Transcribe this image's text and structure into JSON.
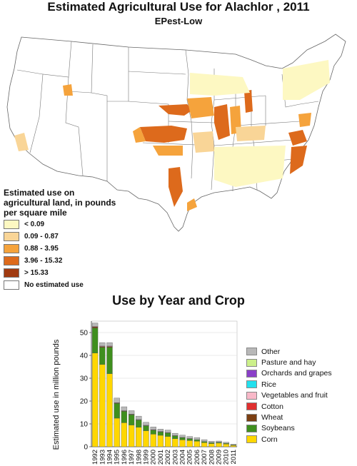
{
  "map": {
    "title": "Estimated Agricultural Use for Alachlor , 2011",
    "subtitle": "EPest-Low"
  },
  "legend": {
    "heading": "Estimated use on agricultural land, in pounds per square mile",
    "items": [
      {
        "label": "< 0.09",
        "color": "#fdf8c2"
      },
      {
        "label": "0.09 - 0.87",
        "color": "#f9d597"
      },
      {
        "label": "0.88 - 3.95",
        "color": "#f5a33c"
      },
      {
        "label": "3.96 - 15.32",
        "color": "#dd6a1c"
      },
      {
        "label": "> 15.33",
        "color": "#a03a10"
      },
      {
        "label": "No estimated use",
        "color": "#ffffff"
      }
    ]
  },
  "chart_data": {
    "type": "bar",
    "title": "Use by Year and Crop",
    "ylabel": "Estimated use in million pounds",
    "xlabel": "",
    "ylim": [
      0,
      55
    ],
    "yticks": [
      0,
      10,
      20,
      30,
      40,
      50
    ],
    "grid": true,
    "legend_position": "right",
    "categories": [
      "1992",
      "1993",
      "1994",
      "1995",
      "1996",
      "1997",
      "1998",
      "1999",
      "2000",
      "2001",
      "2002",
      "2003",
      "2004",
      "2005",
      "2006",
      "2007",
      "2008",
      "2009",
      "2010",
      "2011"
    ],
    "series": [
      {
        "name": "Corn",
        "color": "#ffd700",
        "values": [
          41,
          36,
          32,
          12.5,
          10.5,
          9.5,
          8.5,
          7,
          5.5,
          5,
          4.5,
          3.5,
          3,
          2.7,
          2.4,
          1.8,
          1.4,
          1.6,
          1.2,
          0.6
        ]
      },
      {
        "name": "Soybeans",
        "color": "#3f8f1e",
        "values": [
          11,
          7.5,
          11.5,
          6.5,
          5,
          4.5,
          3.2,
          2.2,
          1.8,
          1.5,
          1.5,
          1.3,
          1.0,
          0.8,
          0.7,
          0.5,
          0.4,
          0.4,
          0.3,
          0.2
        ]
      },
      {
        "name": "Wheat",
        "color": "#7b3f12",
        "values": [
          0.5,
          0.4,
          0.4,
          0.2,
          0.2,
          0.2,
          0.1,
          0.1,
          0.1,
          0.1,
          0.1,
          0.1,
          0.1,
          0.1,
          0,
          0,
          0,
          0,
          0,
          0
        ]
      },
      {
        "name": "Cotton",
        "color": "#e03030",
        "values": [
          0,
          0,
          0,
          0,
          0,
          0,
          0,
          0,
          0,
          0,
          0,
          0,
          0,
          0,
          0,
          0,
          0,
          0,
          0,
          0
        ]
      },
      {
        "name": "Vegetables and fruit",
        "color": "#f8b8c8",
        "values": [
          0.2,
          0.2,
          0.2,
          0.1,
          0.1,
          0.1,
          0.1,
          0.1,
          0.1,
          0.1,
          0.1,
          0,
          0,
          0,
          0,
          0,
          0,
          0,
          0,
          0
        ]
      },
      {
        "name": "Rice",
        "color": "#22e0ee",
        "values": [
          0,
          0,
          0,
          0,
          0,
          0,
          0,
          0,
          0,
          0,
          0,
          0,
          0,
          0,
          0,
          0,
          0,
          0,
          0,
          0
        ]
      },
      {
        "name": "Orchards and grapes",
        "color": "#8a3fc8",
        "values": [
          0,
          0,
          0,
          0,
          0,
          0,
          0,
          0,
          0,
          0,
          0,
          0,
          0,
          0,
          0,
          0,
          0,
          0,
          0,
          0
        ]
      },
      {
        "name": "Pasture and hay",
        "color": "#ccf08a",
        "values": [
          0,
          0,
          0,
          0,
          0,
          0,
          0,
          0,
          0,
          0,
          0,
          0,
          0,
          0,
          0,
          0,
          0,
          0,
          0,
          0
        ]
      },
      {
        "name": "Other",
        "color": "#b8b8b8",
        "values": [
          1.5,
          1.5,
          1.5,
          2,
          1.7,
          1.5,
          1.5,
          1.3,
          1.2,
          1.0,
          1.1,
          1.0,
          1.0,
          0.9,
          0.9,
          0.8,
          0.6,
          0.5,
          0.5,
          0.3
        ]
      }
    ],
    "legend_order": [
      "Other",
      "Pasture and hay",
      "Orchards and grapes",
      "Rice",
      "Vegetables and fruit",
      "Cotton",
      "Wheat",
      "Soybeans",
      "Corn"
    ]
  }
}
